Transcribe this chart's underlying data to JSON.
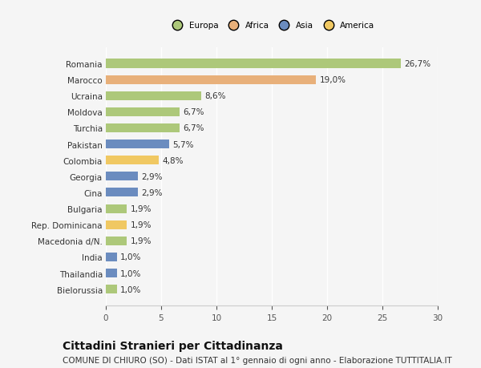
{
  "categories": [
    "Romania",
    "Marocco",
    "Ucraina",
    "Moldova",
    "Turchia",
    "Pakistan",
    "Colombia",
    "Georgia",
    "Cina",
    "Bulgaria",
    "Rep. Dominicana",
    "Macedonia d/N.",
    "India",
    "Thailandia",
    "Bielorussia"
  ],
  "values": [
    26.7,
    19.0,
    8.6,
    6.7,
    6.7,
    5.7,
    4.8,
    2.9,
    2.9,
    1.9,
    1.9,
    1.9,
    1.0,
    1.0,
    1.0
  ],
  "labels": [
    "26,7%",
    "19,0%",
    "8,6%",
    "6,7%",
    "6,7%",
    "5,7%",
    "4,8%",
    "2,9%",
    "2,9%",
    "1,9%",
    "1,9%",
    "1,9%",
    "1,0%",
    "1,0%",
    "1,0%"
  ],
  "colors": [
    "#adc87a",
    "#e8b07a",
    "#adc87a",
    "#adc87a",
    "#adc87a",
    "#6b8cbf",
    "#f0c862",
    "#6b8cbf",
    "#6b8cbf",
    "#adc87a",
    "#f0c862",
    "#adc87a",
    "#6b8cbf",
    "#6b8cbf",
    "#adc87a"
  ],
  "legend": [
    {
      "label": "Europa",
      "color": "#adc87a"
    },
    {
      "label": "Africa",
      "color": "#e8b07a"
    },
    {
      "label": "Asia",
      "color": "#6b8cbf"
    },
    {
      "label": "America",
      "color": "#f0c862"
    }
  ],
  "xlim": [
    0,
    30
  ],
  "xticks": [
    0,
    5,
    10,
    15,
    20,
    25,
    30
  ],
  "title": "Cittadini Stranieri per Cittadinanza",
  "subtitle": "COMUNE DI CHIURO (SO) - Dati ISTAT al 1° gennaio di ogni anno - Elaborazione TUTTITALIA.IT",
  "bg_color": "#f5f5f5",
  "bar_height": 0.55,
  "title_fontsize": 10,
  "subtitle_fontsize": 7.5,
  "label_fontsize": 7.5,
  "tick_fontsize": 7.5,
  "axis_fontsize": 7.5
}
